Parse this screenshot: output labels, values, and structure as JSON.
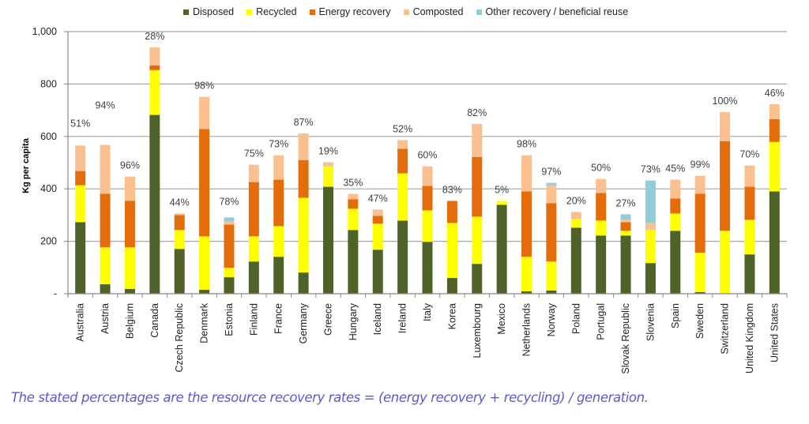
{
  "chart_data": {
    "type": "bar",
    "stacked": true,
    "title": "",
    "xlabel": "",
    "ylabel": "Kg per capita",
    "ylim": [
      0,
      1000
    ],
    "yticks": [
      0,
      200,
      400,
      600,
      800,
      1000
    ],
    "ytick_labels": [
      "-",
      "200",
      "400",
      "600",
      "800",
      "1,000"
    ],
    "grid": true,
    "legend_position": "top-center",
    "categories": [
      "Australia",
      "Austria",
      "Belgium",
      "Canada",
      "Czech Republic",
      "Denmark",
      "Estonia",
      "Finland",
      "France",
      "Germany",
      "Greece",
      "Hungary",
      "Iceland",
      "Ireland",
      "Italy",
      "Korea",
      "Luxembourg",
      "Mexico",
      "Netherlands",
      "Norway",
      "Poland",
      "Portugal",
      "Slovak Republic",
      "Slovenia",
      "Spain",
      "Sweden",
      "Switzerland",
      "United Kingdom",
      "United States"
    ],
    "series": [
      {
        "name": "Disposed",
        "color": "#4f6228",
        "values": [
          273,
          36,
          18,
          682,
          171,
          15,
          63,
          123,
          141,
          81,
          408,
          243,
          168,
          279,
          198,
          60,
          114,
          339,
          9,
          12,
          252,
          222,
          222,
          117,
          240,
          6,
          0,
          150,
          390
        ]
      },
      {
        "name": "Recycled",
        "color": "#ffff00",
        "values": [
          141,
          141,
          159,
          171,
          72,
          204,
          36,
          96,
          117,
          285,
          78,
          81,
          99,
          180,
          120,
          210,
          180,
          15,
          132,
          111,
          33,
          57,
          18,
          126,
          66,
          150,
          240,
          132,
          189
        ]
      },
      {
        "name": "Energy recovery",
        "color": "#e46c0a",
        "values": [
          54,
          204,
          177,
          18,
          57,
          409,
          165,
          207,
          177,
          144,
          0,
          36,
          30,
          94,
          93,
          84,
          228,
          0,
          249,
          222,
          0,
          105,
          33,
          0,
          57,
          225,
          342,
          126,
          87
        ]
      },
      {
        "name": "Composted",
        "color": "#fac090",
        "values": [
          97,
          187,
          93,
          69,
          6,
          123,
          12,
          66,
          93,
          102,
          15,
          21,
          24,
          33,
          75,
          0,
          126,
          0,
          138,
          69,
          27,
          54,
          9,
          27,
          72,
          69,
          111,
          81,
          57
        ]
      },
      {
        "name": "Other recovery / beneficial reuse",
        "color": "#92cddc",
        "values": [
          0,
          0,
          0,
          0,
          0,
          0,
          15,
          0,
          0,
          0,
          0,
          0,
          0,
          0,
          0,
          0,
          0,
          0,
          0,
          9,
          0,
          0,
          21,
          162,
          0,
          0,
          0,
          0,
          0
        ]
      }
    ],
    "data_labels": [
      "51%",
      "94%",
      "96%",
      "28%",
      "44%",
      "98%",
      "78%",
      "75%",
      "73%",
      "87%",
      "19%",
      "35%",
      "47%",
      "52%",
      "60%",
      "83%",
      "82%",
      "5%",
      "98%",
      "97%",
      "20%",
      "50%",
      "27%",
      "73%",
      "45%",
      "99%",
      "100%",
      "70%",
      "46%"
    ],
    "annotation": "The stated percentages are the resource recovery rates = (energy recovery + recycling) / generation."
  },
  "legend": [
    {
      "label": "Disposed",
      "color": "#4f6228"
    },
    {
      "label": "Recycled",
      "color": "#ffff00"
    },
    {
      "label": "Energy recovery",
      "color": "#e46c0a"
    },
    {
      "label": "Composted",
      "color": "#fac090"
    },
    {
      "label": "Other recovery / beneficial reuse",
      "color": "#92cddc"
    }
  ],
  "caption": "The stated percentages are the resource recovery rates = (energy recovery + recycling) / generation."
}
